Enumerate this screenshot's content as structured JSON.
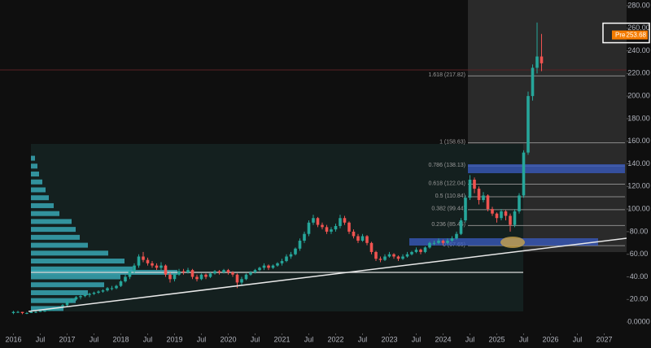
{
  "chart_data": {
    "type": "candlestick",
    "x": [
      "2016-01",
      "2016-02",
      "2016-03",
      "2016-04",
      "2016-05",
      "2016-06",
      "2016-07",
      "2016-08",
      "2016-09",
      "2016-10",
      "2016-11",
      "2016-12",
      "2017-01",
      "2017-02",
      "2017-03",
      "2017-04",
      "2017-05",
      "2017-06",
      "2017-07",
      "2017-08",
      "2017-09",
      "2017-10",
      "2017-11",
      "2017-12",
      "2018-01",
      "2018-02",
      "2018-03",
      "2018-04",
      "2018-05",
      "2018-06",
      "2018-07",
      "2018-08",
      "2018-09",
      "2018-10",
      "2018-11",
      "2018-12",
      "2019-01",
      "2019-02",
      "2019-03",
      "2019-04",
      "2019-05",
      "2019-06",
      "2019-07",
      "2019-08",
      "2019-09",
      "2019-10",
      "2019-11",
      "2019-12",
      "2020-01",
      "2020-02",
      "2020-03",
      "2020-04",
      "2020-05",
      "2020-06",
      "2020-07",
      "2020-08",
      "2020-09",
      "2020-10",
      "2020-11",
      "2020-12",
      "2021-01",
      "2021-02",
      "2021-03",
      "2021-04",
      "2021-05",
      "2021-06",
      "2021-07",
      "2021-08",
      "2021-09",
      "2021-10",
      "2021-11",
      "2021-12",
      "2022-01",
      "2022-02",
      "2022-03",
      "2022-04",
      "2022-05",
      "2022-06",
      "2022-07",
      "2022-08",
      "2022-09",
      "2022-10",
      "2022-11",
      "2022-12",
      "2023-01",
      "2023-02",
      "2023-03",
      "2023-04",
      "2023-05",
      "2023-06",
      "2023-07",
      "2023-08",
      "2023-09",
      "2023-10",
      "2023-11",
      "2023-12",
      "2024-01",
      "2024-02",
      "2024-03",
      "2024-04",
      "2024-05",
      "2024-06",
      "2024-07",
      "2024-08",
      "2024-09",
      "2024-10",
      "2024-11",
      "2024-12",
      "2025-01",
      "2025-02",
      "2025-03",
      "2025-04",
      "2025-05",
      "2025-06",
      "2025-07",
      "2025-08",
      "2025-09",
      "2025-10",
      "2025-11"
    ],
    "ohlc": [
      [
        8,
        10,
        7,
        9
      ],
      [
        9,
        10,
        8,
        9
      ],
      [
        9,
        9,
        7,
        8
      ],
      [
        8,
        9,
        7,
        8
      ],
      [
        8,
        10,
        8,
        9
      ],
      [
        9,
        10,
        8,
        9
      ],
      [
        9,
        11,
        9,
        10
      ],
      [
        10,
        11,
        9,
        10
      ],
      [
        10,
        12,
        10,
        11
      ],
      [
        11,
        13,
        10,
        12
      ],
      [
        12,
        14,
        11,
        13
      ],
      [
        13,
        16,
        12,
        15
      ],
      [
        15,
        19,
        14,
        18
      ],
      [
        18,
        21,
        17,
        20
      ],
      [
        20,
        23,
        19,
        22
      ],
      [
        22,
        24,
        20,
        23
      ],
      [
        23,
        25,
        22,
        24
      ],
      [
        24,
        26,
        22,
        25
      ],
      [
        25,
        27,
        24,
        26
      ],
      [
        26,
        28,
        25,
        27
      ],
      [
        27,
        29,
        26,
        28
      ],
      [
        28,
        31,
        27,
        30
      ],
      [
        30,
        32,
        28,
        30
      ],
      [
        30,
        33,
        29,
        32
      ],
      [
        32,
        37,
        31,
        36
      ],
      [
        36,
        42,
        35,
        40
      ],
      [
        40,
        46,
        38,
        45
      ],
      [
        45,
        52,
        43,
        50
      ],
      [
        50,
        60,
        48,
        58
      ],
      [
        58,
        62,
        53,
        55
      ],
      [
        55,
        57,
        50,
        52
      ],
      [
        52,
        54,
        48,
        50
      ],
      [
        50,
        52,
        46,
        48
      ],
      [
        48,
        53,
        46,
        50
      ],
      [
        50,
        51,
        40,
        42
      ],
      [
        42,
        44,
        35,
        38
      ],
      [
        38,
        43,
        36,
        42
      ],
      [
        42,
        47,
        41,
        45
      ],
      [
        45,
        47,
        42,
        44
      ],
      [
        44,
        48,
        43,
        46
      ],
      [
        46,
        47,
        38,
        40
      ],
      [
        40,
        42,
        36,
        38
      ],
      [
        38,
        43,
        37,
        42
      ],
      [
        42,
        43,
        38,
        40
      ],
      [
        40,
        44,
        39,
        43
      ],
      [
        43,
        46,
        42,
        45
      ],
      [
        45,
        46,
        42,
        44
      ],
      [
        44,
        47,
        43,
        46
      ],
      [
        46,
        47,
        42,
        44
      ],
      [
        44,
        45,
        40,
        42
      ],
      [
        42,
        43,
        30,
        35
      ],
      [
        35,
        40,
        33,
        38
      ],
      [
        38,
        43,
        37,
        42
      ],
      [
        42,
        45,
        41,
        44
      ],
      [
        44,
        47,
        43,
        46
      ],
      [
        46,
        49,
        45,
        48
      ],
      [
        48,
        52,
        46,
        50
      ],
      [
        50,
        51,
        46,
        48
      ],
      [
        48,
        51,
        47,
        50
      ],
      [
        50,
        53,
        49,
        52
      ],
      [
        52,
        56,
        50,
        54
      ],
      [
        54,
        60,
        53,
        58
      ],
      [
        58,
        62,
        56,
        60
      ],
      [
        60,
        66,
        59,
        65
      ],
      [
        65,
        74,
        63,
        72
      ],
      [
        72,
        80,
        70,
        78
      ],
      [
        78,
        90,
        76,
        88
      ],
      [
        88,
        95,
        86,
        92
      ],
      [
        92,
        93,
        84,
        86
      ],
      [
        86,
        88,
        82,
        84
      ],
      [
        84,
        86,
        78,
        80
      ],
      [
        80,
        84,
        78,
        82
      ],
      [
        82,
        87,
        80,
        85
      ],
      [
        85,
        95,
        83,
        92
      ],
      [
        92,
        94,
        86,
        88
      ],
      [
        88,
        89,
        78,
        80
      ],
      [
        80,
        82,
        74,
        76
      ],
      [
        76,
        78,
        70,
        72
      ],
      [
        72,
        78,
        71,
        76
      ],
      [
        76,
        77,
        68,
        70
      ],
      [
        70,
        71,
        60,
        62
      ],
      [
        62,
        63,
        54,
        56
      ],
      [
        56,
        58,
        53,
        55
      ],
      [
        55,
        60,
        54,
        58
      ],
      [
        58,
        62,
        57,
        60
      ],
      [
        60,
        61,
        56,
        58
      ],
      [
        58,
        59,
        54,
        56
      ],
      [
        56,
        60,
        55,
        58
      ],
      [
        58,
        62,
        57,
        60
      ],
      [
        60,
        63,
        59,
        62
      ],
      [
        62,
        66,
        61,
        64
      ],
      [
        64,
        65,
        60,
        62
      ],
      [
        62,
        67,
        61,
        66
      ],
      [
        66,
        71,
        65,
        70
      ],
      [
        70,
        72,
        68,
        70
      ],
      [
        70,
        74,
        69,
        72
      ],
      [
        72,
        73,
        68,
        70
      ],
      [
        70,
        74,
        69,
        72
      ],
      [
        72,
        76,
        71,
        74
      ],
      [
        74,
        80,
        73,
        78
      ],
      [
        78,
        92,
        77,
        90
      ],
      [
        90,
        112,
        88,
        110
      ],
      [
        110,
        130,
        108,
        126
      ],
      [
        126,
        128,
        114,
        118
      ],
      [
        118,
        120,
        104,
        108
      ],
      [
        108,
        115,
        106,
        112
      ],
      [
        112,
        113,
        98,
        100
      ],
      [
        100,
        102,
        94,
        96
      ],
      [
        96,
        97,
        88,
        92
      ],
      [
        92,
        100,
        90,
        98
      ],
      [
        98,
        99,
        90,
        94
      ],
      [
        94,
        96,
        80,
        86
      ],
      [
        86,
        100,
        84,
        98
      ],
      [
        98,
        114,
        96,
        112
      ],
      [
        112,
        152,
        110,
        150
      ],
      [
        150,
        204,
        148,
        200
      ],
      [
        200,
        228,
        196,
        225
      ],
      [
        225,
        265,
        220,
        235
      ],
      [
        235,
        255,
        222,
        229
      ]
    ],
    "up_color": "#26a69a",
    "down_color": "#ef5350",
    "xlim": [
      "2015-10",
      "2027-06"
    ],
    "xticks": [
      {
        "value": "2016-01",
        "label": "2016"
      },
      {
        "value": "2016-07",
        "label": "Jul"
      },
      {
        "value": "2017-01",
        "label": "2017"
      },
      {
        "value": "2017-07",
        "label": "Jul"
      },
      {
        "value": "2018-01",
        "label": "2018"
      },
      {
        "value": "2018-07",
        "label": "Jul"
      },
      {
        "value": "2019-01",
        "label": "2019"
      },
      {
        "value": "2019-07",
        "label": "Jul"
      },
      {
        "value": "2020-01",
        "label": "2020"
      },
      {
        "value": "2020-07",
        "label": "Jul"
      },
      {
        "value": "2021-01",
        "label": "2021"
      },
      {
        "value": "2021-07",
        "label": "Jul"
      },
      {
        "value": "2022-01",
        "label": "2022"
      },
      {
        "value": "2022-07",
        "label": "Jul"
      },
      {
        "value": "2023-01",
        "label": "2023"
      },
      {
        "value": "2023-07",
        "label": "Jul"
      },
      {
        "value": "2024-01",
        "label": "2024"
      },
      {
        "value": "2024-07",
        "label": "Jul"
      },
      {
        "value": "2025-01",
        "label": "2025"
      },
      {
        "value": "2025-07",
        "label": "Jul"
      },
      {
        "value": "2026-01",
        "label": "2026"
      },
      {
        "value": "2026-07",
        "label": "Jul"
      },
      {
        "value": "2027-01",
        "label": "2027"
      }
    ],
    "ylim": [
      -10,
      285
    ],
    "yticks": [
      {
        "value": 0,
        "label": "0.0000"
      },
      {
        "value": 20,
        "label": "20.00"
      },
      {
        "value": 40,
        "label": "40.00"
      },
      {
        "value": 60,
        "label": "60.00"
      },
      {
        "value": 80,
        "label": "80.00"
      },
      {
        "value": 100,
        "label": "100.00"
      },
      {
        "value": 120,
        "label": "120.00"
      },
      {
        "value": 140,
        "label": "140.00"
      },
      {
        "value": 160,
        "label": "160.00"
      },
      {
        "value": 180,
        "label": "180.00"
      },
      {
        "value": 200,
        "label": "200.00"
      },
      {
        "value": 220,
        "label": "220.00"
      },
      {
        "value": 240,
        "label": "240.00"
      },
      {
        "value": 260,
        "label": "260.00"
      },
      {
        "value": 280,
        "label": "280.00"
      }
    ],
    "fib_levels": [
      {
        "label": "1.618 (217.82)",
        "value": 217.82
      },
      {
        "label": "1 (158.63)",
        "value": 158.63
      },
      {
        "label": "0.786 (138.13)",
        "value": 138.13
      },
      {
        "label": "0.618 (122.04)",
        "value": 122.04
      },
      {
        "label": "0.5 (110.84)",
        "value": 110.84
      },
      {
        "label": "0.382 (99.44)",
        "value": 99.44
      },
      {
        "label": "0.236 (85.45)",
        "value": 85.45
      },
      {
        "label": "0 (67.65)",
        "value": 67.65
      }
    ],
    "price_label": {
      "tag": "Pre",
      "value": 253.68
    },
    "volume_profile": {
      "color": "#37a7b4",
      "levels": [
        145,
        138,
        131,
        124,
        117,
        110,
        103,
        96,
        89,
        82,
        75,
        68,
        61,
        54,
        47,
        44,
        40,
        33,
        26,
        19,
        12
      ],
      "volumes": [
        5,
        8,
        10,
        14,
        18,
        22,
        28,
        35,
        50,
        55,
        60,
        70,
        95,
        115,
        125,
        180,
        110,
        90,
        70,
        55,
        40
      ]
    }
  }
}
